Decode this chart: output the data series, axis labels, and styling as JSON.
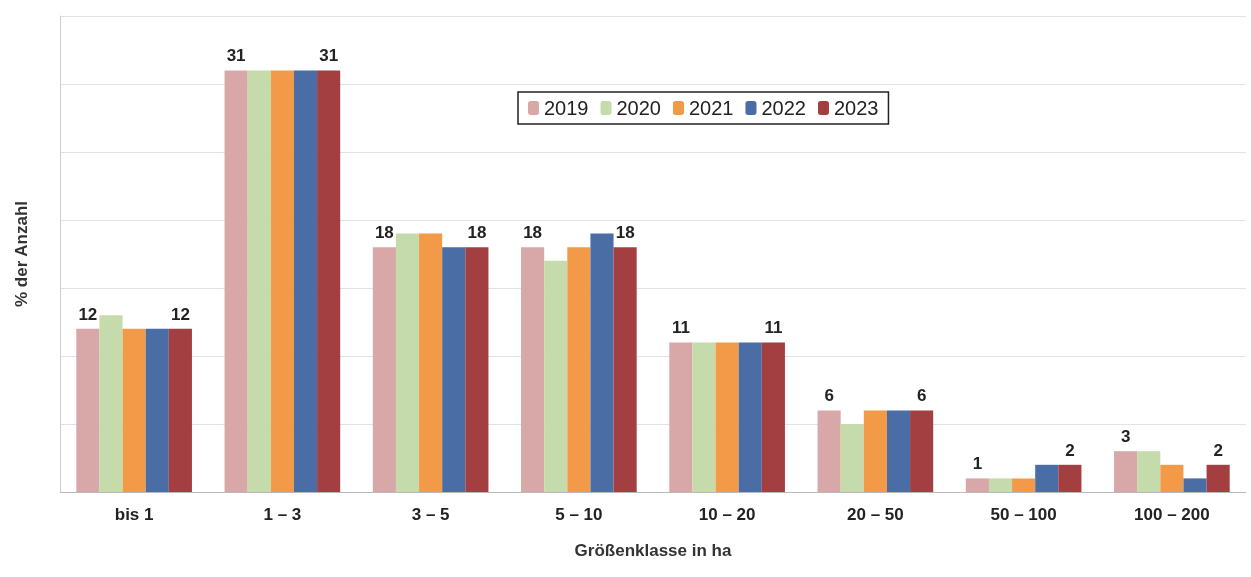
{
  "chart_data": {
    "type": "bar",
    "xlabel": "Größenklasse in ha",
    "ylabel": "% der Anzahl",
    "categories": [
      "bis 1",
      "1 – 3",
      "3 – 5",
      "5 – 10",
      "10 – 20",
      "20 – 50",
      "50 – 100",
      "100 – 200"
    ],
    "series": [
      {
        "name": "2019",
        "color": "#d8a7a8",
        "values": [
          12,
          31,
          18,
          18,
          11,
          6,
          1,
          3
        ],
        "value_labels": [
          "12",
          "31",
          "18",
          "18",
          "11",
          "6",
          "1",
          "3"
        ]
      },
      {
        "name": "2020",
        "color": "#c6dbab",
        "values": [
          13,
          31,
          19,
          17,
          11,
          5,
          1,
          3
        ]
      },
      {
        "name": "2021",
        "color": "#f29a47",
        "values": [
          12,
          31,
          19,
          18,
          11,
          6,
          1,
          2
        ]
      },
      {
        "name": "2022",
        "color": "#4a6da6",
        "values": [
          12,
          31,
          18,
          19,
          11,
          6,
          2,
          1
        ]
      },
      {
        "name": "2023",
        "color": "#a33f40",
        "values": [
          12,
          31,
          18,
          18,
          11,
          6,
          2,
          2
        ],
        "value_labels": [
          "12",
          "31",
          "18",
          "18",
          "11",
          "6",
          "2",
          "2"
        ]
      }
    ],
    "ylim": [
      0,
      35
    ],
    "yticks": [
      {
        "value": 0,
        "label": null
      },
      {
        "value": 5,
        "label": null
      },
      {
        "value": 10,
        "label": null
      },
      {
        "value": 15,
        "label": null
      },
      {
        "value": 20,
        "label": null
      },
      {
        "value": 25,
        "label": null
      },
      {
        "value": 30,
        "label": null
      },
      {
        "value": 35,
        "label": null
      }
    ],
    "grid": "y",
    "legend": "top",
    "tick_labels": "x"
  }
}
